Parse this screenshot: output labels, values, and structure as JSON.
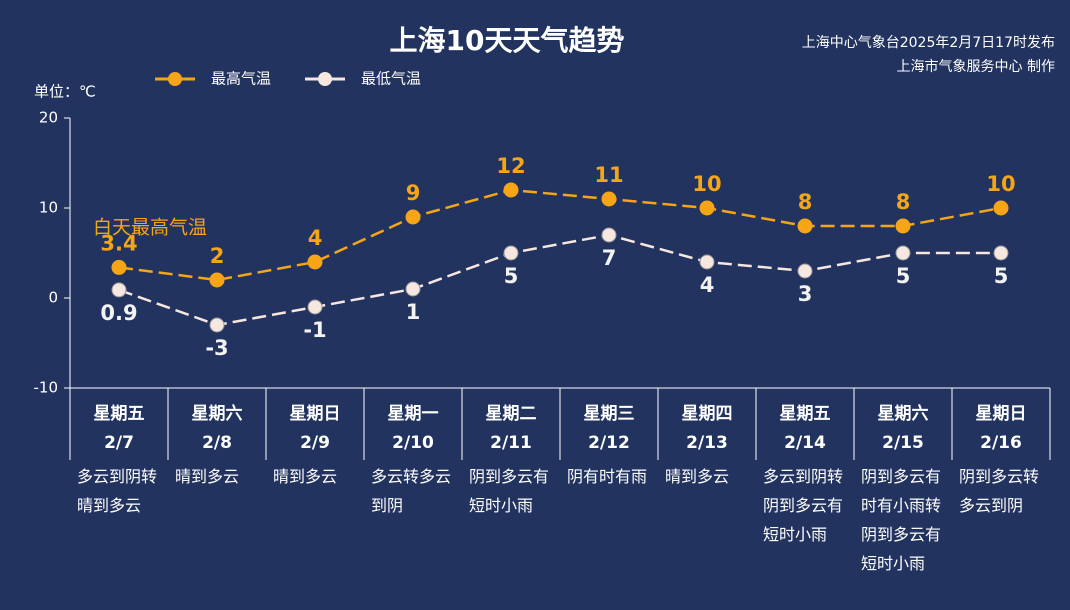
{
  "chart_data": {
    "type": "line",
    "title": "上海10天天气趋势",
    "subtitle": [
      "上海中心气象台2025年2月7日17时发布",
      "上海市气象服务中心 制作"
    ],
    "y_label": "单位：℃",
    "annotation": "白天最高气温",
    "categories": [
      "星期五",
      "星期六",
      "星期日",
      "星期一",
      "星期二",
      "星期三",
      "星期四",
      "星期五",
      "星期六",
      "星期日"
    ],
    "dates": [
      "2/7",
      "2/8",
      "2/9",
      "2/10",
      "2/11",
      "2/12",
      "2/13",
      "2/14",
      "2/15",
      "2/16"
    ],
    "weather": [
      "多云到阴转晴到多云",
      "晴到多云",
      "晴到多云",
      "多云转多云到阴",
      "阴到多云有短时小雨",
      "阴有时有雨",
      "晴到多云",
      "多云到阴转阴到多云有短时小雨",
      "阴到多云有时有小雨转阴到多云有短时小雨",
      "阴到多云转多云到阴"
    ],
    "series": [
      {
        "name": "最高气温",
        "color": "#f5a516",
        "values": [
          3.4,
          2,
          4,
          9,
          12,
          11,
          10,
          8,
          8,
          10
        ]
      },
      {
        "name": "最低气温",
        "color": "#f6e7e0",
        "values": [
          0.9,
          -3,
          -1,
          1,
          5,
          7,
          4,
          3,
          5,
          5
        ]
      }
    ],
    "ylim": [
      -10,
      20
    ],
    "yticks": [
      -10,
      0,
      10,
      20
    ]
  }
}
